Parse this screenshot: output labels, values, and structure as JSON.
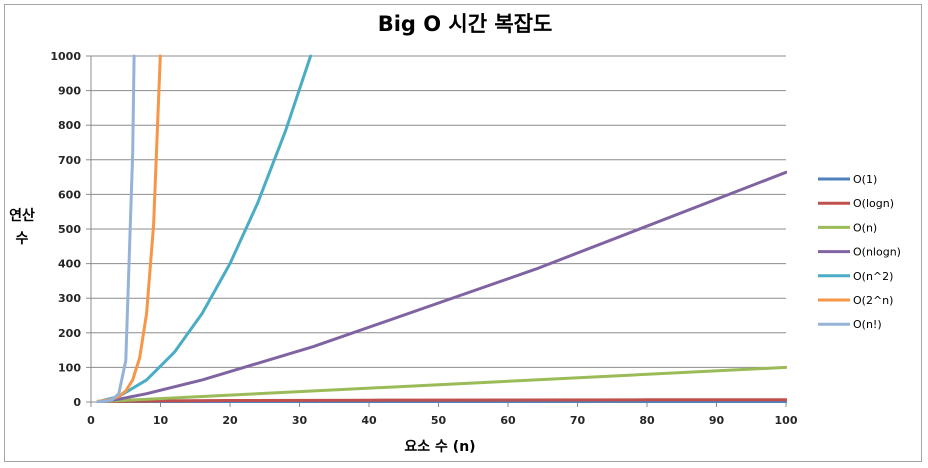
{
  "chart_data": {
    "type": "line",
    "title": "Big O 시간 복잡도",
    "xlabel": "요소 수 (n)",
    "ylabel_lines": [
      "연산",
      "수"
    ],
    "xlim": [
      0,
      100
    ],
    "ylim": [
      0,
      1000
    ],
    "x_ticks": [
      0,
      10,
      20,
      30,
      40,
      50,
      60,
      70,
      80,
      90,
      100
    ],
    "y_ticks": [
      0,
      100,
      200,
      300,
      400,
      500,
      600,
      700,
      800,
      900,
      1000
    ],
    "grid": "horizontal",
    "legend": "right",
    "series": [
      {
        "name": "O(1)",
        "color": "#4f81bd",
        "x": [
          1,
          100
        ],
        "y": [
          1,
          1
        ]
      },
      {
        "name": "O(logn)",
        "color": "#c0504d",
        "x": [
          1,
          2,
          5,
          10,
          20,
          40,
          60,
          80,
          100
        ],
        "y": [
          0,
          1,
          2.32,
          3.32,
          4.32,
          5.32,
          5.91,
          6.32,
          6.64
        ]
      },
      {
        "name": "O(n)",
        "color": "#9bbb59",
        "x": [
          1,
          100
        ],
        "y": [
          1,
          100
        ]
      },
      {
        "name": "O(nlogn)",
        "color": "#8064a2",
        "x": [
          1,
          2,
          4,
          8,
          16,
          32,
          64,
          100
        ],
        "y": [
          0,
          2,
          8,
          24,
          64,
          160,
          384,
          664
        ]
      },
      {
        "name": "O(n^2)",
        "color": "#4bacc6",
        "x": [
          1,
          4,
          8,
          12,
          16,
          20,
          24,
          28,
          31.6
        ],
        "y": [
          1,
          16,
          64,
          144,
          256,
          400,
          576,
          784,
          1000
        ]
      },
      {
        "name": "O(2^n)",
        "color": "#f79646",
        "x": [
          1,
          2,
          3,
          4,
          5,
          6,
          7,
          8,
          9,
          9.97
        ],
        "y": [
          2,
          4,
          8,
          16,
          32,
          64,
          128,
          256,
          512,
          1000
        ]
      },
      {
        "name": "O(n!)",
        "color": "#95b3d7",
        "x": [
          1,
          2,
          3,
          4,
          5,
          6,
          6.2
        ],
        "y": [
          1,
          2,
          6,
          24,
          120,
          720,
          1000
        ]
      }
    ]
  }
}
